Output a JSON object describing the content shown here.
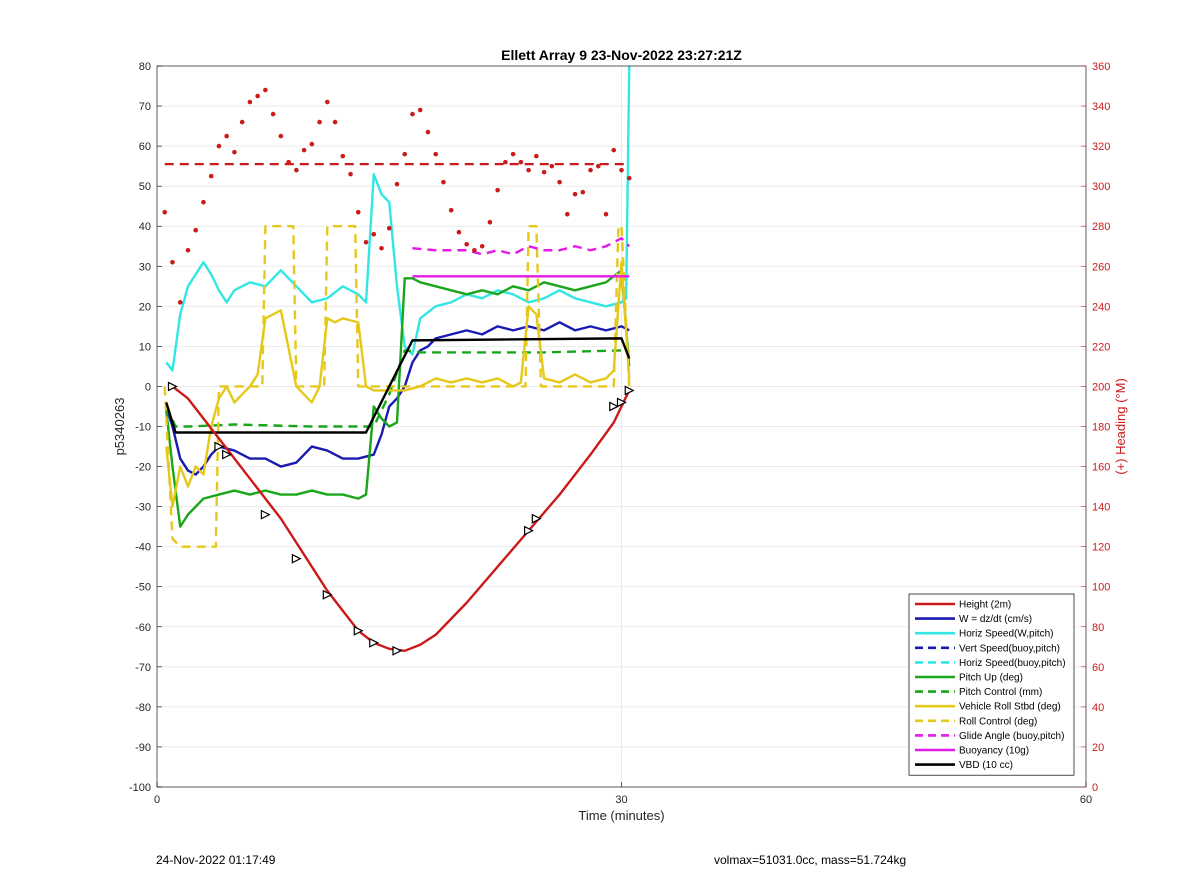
{
  "footer": {
    "timestamp": "24-Nov-2022 01:17:49",
    "mass_info": "volmax=51031.0cc, mass=51.724kg"
  },
  "chart_data": {
    "type": "line",
    "title": "Ellett Array 9 23-Nov-2022 23:27:21Z",
    "xlabel": "Time (minutes)",
    "ylabel": "p5340263",
    "ylabel_right": "(+) Heading (°M)",
    "xlim": [
      0,
      60
    ],
    "ylim": [
      -100,
      80
    ],
    "ylim_right": [
      0,
      360
    ],
    "x_ticks": [
      0,
      30,
      60
    ],
    "y_ticks": [
      -100,
      -90,
      -80,
      -70,
      -60,
      -50,
      -40,
      -30,
      -20,
      -10,
      0,
      10,
      20,
      30,
      40,
      50,
      60,
      70,
      80
    ],
    "y_ticks_right": [
      0,
      20,
      40,
      60,
      80,
      100,
      120,
      140,
      160,
      180,
      200,
      220,
      240,
      260,
      280,
      300,
      320,
      340,
      360
    ],
    "grid": true,
    "legend_position": "bottom-right",
    "colors": {
      "red": "#cc1a1a",
      "blue": "#1a1ab3",
      "cyan": "#33e6e6",
      "green": "#1aa61a",
      "yellow": "#e6c81a",
      "magenta": "#e61ae6",
      "black": "#000000"
    },
    "series": [
      {
        "name": "Height (2m)",
        "color": "red",
        "dash": false,
        "axis": "left",
        "x": [
          1,
          2,
          3,
          4,
          5,
          6,
          7,
          8,
          9,
          10,
          11,
          12,
          13,
          14,
          15,
          16,
          17,
          18,
          19,
          20,
          22,
          24,
          26,
          28,
          29.5,
          30.5
        ],
        "y": [
          0,
          -3,
          -8,
          -13,
          -18,
          -23,
          -28,
          -33,
          -39,
          -45,
          -51,
          -56,
          -61,
          -64,
          -65.5,
          -66,
          -64.5,
          -62,
          -58,
          -54,
          -45,
          -36,
          -27,
          -17,
          -9,
          -1
        ]
      },
      {
        "name": "W = dz/dt (cm/s)",
        "color": "blue",
        "dash": false,
        "axis": "left",
        "x": [
          0.6,
          1,
          1.5,
          2,
          2.5,
          3,
          3.5,
          4,
          5,
          6,
          7,
          8,
          9,
          10,
          11,
          12,
          13,
          14,
          14.5,
          15,
          15.5,
          16,
          16.5,
          17,
          17.5,
          18,
          19,
          20,
          21,
          22,
          23,
          24,
          25,
          26,
          27,
          28,
          29,
          30,
          30.5
        ],
        "y": [
          -5,
          -10,
          -18,
          -21,
          -22,
          -20,
          -17,
          -15,
          -16,
          -18,
          -18,
          -20,
          -19,
          -15,
          -16,
          -18,
          -18,
          -17,
          -12,
          -5,
          -3,
          0,
          6,
          9,
          10,
          12,
          13,
          14,
          13,
          15,
          14,
          15,
          14,
          16,
          14,
          15,
          14,
          15,
          14
        ]
      },
      {
        "name": "Horiz Speed(W,pitch)",
        "color": "cyan",
        "dash": false,
        "axis": "left",
        "x": [
          0.6,
          1,
          1.5,
          2,
          2.5,
          3,
          3.5,
          4,
          4.5,
          5,
          6,
          7,
          8,
          9,
          10,
          11,
          12,
          13,
          13.5,
          14,
          14.5,
          15,
          15.5,
          16,
          16.5,
          17,
          18,
          19,
          20,
          21,
          22,
          23,
          24,
          25,
          26,
          27,
          28,
          29,
          30,
          30.3,
          30.5
        ],
        "y": [
          6,
          4,
          18,
          25,
          28,
          31,
          28,
          24,
          21,
          24,
          26,
          25,
          29,
          25,
          21,
          22,
          25,
          23,
          21,
          53,
          48,
          46,
          25,
          10,
          8,
          17,
          20,
          21,
          23,
          22,
          24,
          23,
          21,
          22,
          24,
          22,
          21,
          20,
          21,
          22,
          80
        ]
      },
      {
        "name": "Vert Speed(buoy,pitch)",
        "color": "blue",
        "dash": true,
        "axis": "left",
        "x": [],
        "y": []
      },
      {
        "name": "Horiz Speed(buoy,pitch)",
        "color": "cyan",
        "dash": true,
        "axis": "left",
        "x": [],
        "y": []
      },
      {
        "name": "Pitch Up (deg)",
        "color": "green",
        "dash": false,
        "axis": "left",
        "x": [
          0.6,
          1,
          1.5,
          2,
          2.5,
          3,
          4,
          5,
          6,
          7,
          8,
          9,
          10,
          11,
          12,
          13,
          13.5,
          14,
          14.5,
          15,
          15.5,
          16,
          16.5,
          17,
          18,
          19,
          20,
          21,
          22,
          23,
          24,
          25,
          26,
          27,
          28,
          29,
          30,
          30.5
        ],
        "y": [
          -6,
          -20,
          -35,
          -32,
          -30,
          -28,
          -27,
          -26,
          -27,
          -26,
          -27,
          -27,
          -26,
          -27,
          -27,
          -28,
          -27,
          -5,
          -8,
          -10,
          -9,
          27,
          27,
          26,
          25,
          24,
          23,
          24,
          23,
          25,
          24,
          26,
          25,
          24,
          25,
          26,
          29,
          5
        ]
      },
      {
        "name": "Pitch Control (mm)",
        "color": "green",
        "dash": true,
        "axis": "left",
        "x": [
          0.6,
          1.2,
          2,
          5,
          10,
          13.5,
          14,
          15,
          16,
          17,
          20,
          25,
          30,
          30.5
        ],
        "y": [
          -5,
          -10,
          -10,
          -9.5,
          -10,
          -10,
          -10,
          -2,
          9,
          8.5,
          8.5,
          8.5,
          9,
          9
        ]
      },
      {
        "name": "Vehicle Roll Stbd (deg)",
        "color": "yellow",
        "dash": false,
        "axis": "left",
        "x": [
          0.6,
          1,
          1.5,
          2,
          2.5,
          3,
          3.5,
          4,
          4.5,
          5,
          6,
          6.5,
          7,
          8,
          9,
          9.5,
          10,
          10.5,
          11,
          11.5,
          12,
          13,
          13.5,
          14,
          15,
          16,
          17,
          18,
          19,
          20,
          21,
          22,
          23,
          23.5,
          24,
          24.5,
          25,
          26,
          27,
          28,
          29,
          29.5,
          30,
          30.5
        ],
        "y": [
          -15,
          -30,
          -20,
          -25,
          -20,
          -22,
          -10,
          -3,
          0,
          -4,
          0,
          3,
          17,
          19,
          0,
          -2,
          -4,
          0,
          17,
          16,
          17,
          16,
          0,
          -1,
          -1,
          -1,
          0,
          2,
          1,
          2,
          1,
          2,
          0,
          1,
          20,
          18,
          2,
          1,
          3,
          1,
          2,
          4,
          31,
          2
        ]
      },
      {
        "name": "Roll Control (deg)",
        "color": "yellow",
        "dash": true,
        "axis": "left",
        "x": [
          0.5,
          1,
          1.5,
          3.5,
          3.8,
          4,
          6.5,
          6.8,
          7,
          8.5,
          8.8,
          9,
          10.5,
          10.8,
          11,
          12.5,
          12.8,
          13,
          16,
          20,
          23.5,
          23.8,
          24,
          24.5,
          24.8,
          25,
          29.5,
          29.8,
          30,
          30.5
        ],
        "y": [
          0,
          -38,
          -40,
          -40,
          -40,
          0,
          0,
          0,
          40,
          40,
          40,
          0,
          0,
          0,
          40,
          40,
          40,
          0,
          0,
          0,
          0,
          0,
          40,
          40,
          0,
          0,
          0,
          40,
          40,
          0
        ]
      },
      {
        "name": "Glide Angle (buoy,pitch)",
        "color": "magenta",
        "dash": true,
        "axis": "left",
        "x": [
          16.5,
          18,
          20,
          21,
          22,
          23,
          24,
          25,
          26,
          27,
          28,
          29,
          30,
          30.5
        ],
        "y": [
          34.5,
          34,
          34,
          33,
          34,
          33,
          35,
          34,
          34,
          35,
          34,
          35,
          37,
          35
        ]
      },
      {
        "name": "Buoyancy (10g)",
        "color": "magenta",
        "dash": false,
        "axis": "left",
        "x": [
          16.5,
          30.5
        ],
        "y": [
          27.5,
          27.5
        ]
      },
      {
        "name": "VBD (10 cc)",
        "color": "black",
        "dash": false,
        "axis": "left",
        "x": [
          0.6,
          1.2,
          2,
          13,
          13.5,
          16.5,
          30,
          30.5
        ],
        "y": [
          -4,
          -11.5,
          -11.5,
          -11.5,
          -11.5,
          11.5,
          12,
          7
        ]
      }
    ],
    "heading_reference": {
      "color": "red",
      "dash": true,
      "axis": "right",
      "x": [
        0.5,
        30.5
      ],
      "y": [
        311,
        311
      ]
    },
    "heading_points": {
      "color": "red",
      "axis": "right",
      "x": [
        0.5,
        1,
        1.5,
        2,
        2.5,
        3,
        3.5,
        4,
        4.5,
        5,
        5.5,
        6,
        6.5,
        7,
        7.5,
        8,
        8.5,
        9,
        9.5,
        10,
        10.5,
        11,
        11.5,
        12,
        12.5,
        13,
        13.5,
        14,
        14.5,
        15,
        15.5,
        16,
        16.5,
        17,
        17.5,
        18,
        18.5,
        19,
        19.5,
        20,
        20.5,
        21,
        21.5,
        22,
        22.5,
        23,
        23.5,
        24,
        24.5,
        25,
        25.5,
        26,
        26.5,
        27,
        27.5,
        28,
        28.5,
        29,
        29.5,
        30,
        30.5
      ],
      "y": [
        287,
        262,
        242,
        268,
        278,
        292,
        305,
        320,
        325,
        317,
        332,
        342,
        345,
        348,
        336,
        325,
        312,
        308,
        318,
        321,
        332,
        342,
        332,
        315,
        306,
        287,
        272,
        276,
        269,
        279,
        301,
        316,
        336,
        338,
        327,
        316,
        302,
        288,
        277,
        271,
        268,
        270,
        282,
        298,
        312,
        316,
        312,
        308,
        315,
        307,
        310,
        302,
        286,
        296,
        297,
        308,
        310,
        286,
        318,
        308,
        304
      ]
    },
    "height_markers": {
      "x": [
        1,
        4,
        4.5,
        7,
        9,
        11,
        13,
        14,
        15.5,
        24,
        24.5,
        29.5,
        30,
        30.5
      ],
      "y": [
        0,
        -15,
        -17,
        -32,
        -43,
        -52,
        -61,
        -64,
        -66,
        -36,
        -33,
        -5,
        -4,
        -1
      ]
    }
  }
}
